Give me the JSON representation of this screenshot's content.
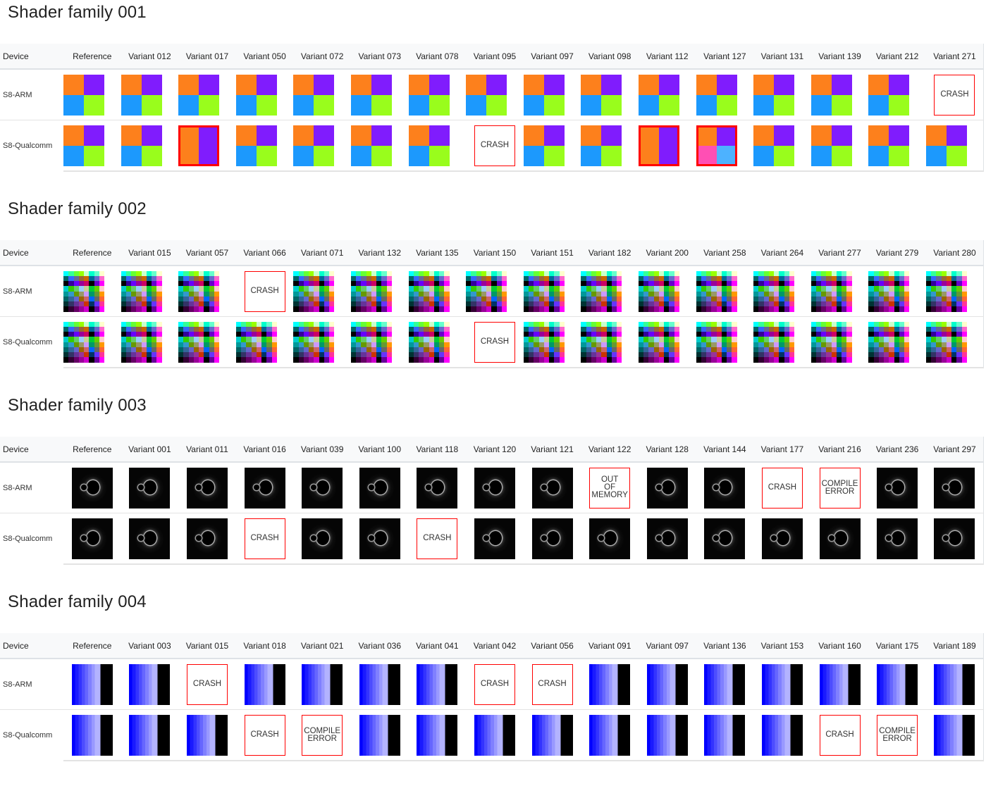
{
  "labels": {
    "device": "Device",
    "reference": "Reference"
  },
  "devices": [
    "S8-ARM",
    "S8-Qualcomm"
  ],
  "families": [
    {
      "title": "Shader family 001",
      "image": "quad",
      "variants": [
        "Variant 012",
        "Variant 017",
        "Variant 050",
        "Variant 072",
        "Variant 073",
        "Variant 078",
        "Variant 095",
        "Variant 097",
        "Variant 098",
        "Variant 112",
        "Variant 127",
        "Variant 131",
        "Variant 139",
        "Variant 212",
        "Variant 271"
      ],
      "results": {
        "S8-ARM": {
          "Variant 271": "CRASH"
        },
        "S8-Qualcomm": {
          "Variant 017": "diff-split",
          "Variant 095": "CRASH",
          "Variant 112": "diff-split",
          "Variant 127": "diff-recolor"
        }
      }
    },
    {
      "title": "Shader family 002",
      "image": "mosaic",
      "variants": [
        "Variant 015",
        "Variant 057",
        "Variant 066",
        "Variant 071",
        "Variant 132",
        "Variant 135",
        "Variant 150",
        "Variant 151",
        "Variant 182",
        "Variant 200",
        "Variant 258",
        "Variant 264",
        "Variant 277",
        "Variant 279",
        "Variant 280"
      ],
      "results": {
        "S8-ARM": {
          "Variant 066": "CRASH"
        },
        "S8-Qualcomm": {
          "Variant 150": "CRASH"
        }
      }
    },
    {
      "title": "Shader family 003",
      "image": "fractal",
      "variants": [
        "Variant 001",
        "Variant 011",
        "Variant 016",
        "Variant 039",
        "Variant 100",
        "Variant 118",
        "Variant 120",
        "Variant 121",
        "Variant 122",
        "Variant 128",
        "Variant 144",
        "Variant 177",
        "Variant 216",
        "Variant 236",
        "Variant 297"
      ],
      "results": {
        "S8-ARM": {
          "Variant 122": "OUT\nOF\nMEMORY",
          "Variant 177": "CRASH",
          "Variant 216": "COMPILE\nERROR"
        },
        "S8-Qualcomm": {
          "Variant 016": "CRASH",
          "Variant 118": "CRASH"
        }
      }
    },
    {
      "title": "Shader family 004",
      "image": "gradient",
      "variants": [
        "Variant 003",
        "Variant 015",
        "Variant 018",
        "Variant 021",
        "Variant 036",
        "Variant 041",
        "Variant 042",
        "Variant 056",
        "Variant 091",
        "Variant 097",
        "Variant 136",
        "Variant 153",
        "Variant 160",
        "Variant 175",
        "Variant 189"
      ],
      "results": {
        "S8-ARM": {
          "Variant 015": "CRASH",
          "Variant 042": "CRASH",
          "Variant 056": "CRASH"
        },
        "S8-Qualcomm": {
          "Variant 018": "CRASH",
          "Variant 021": "COMPILE\nERROR",
          "Variant 160": "CRASH",
          "Variant 175": "COMPILE\nERROR"
        }
      }
    }
  ],
  "colors": {
    "failure_border": "#ff0000",
    "header_bg": "#f8f9fa"
  }
}
